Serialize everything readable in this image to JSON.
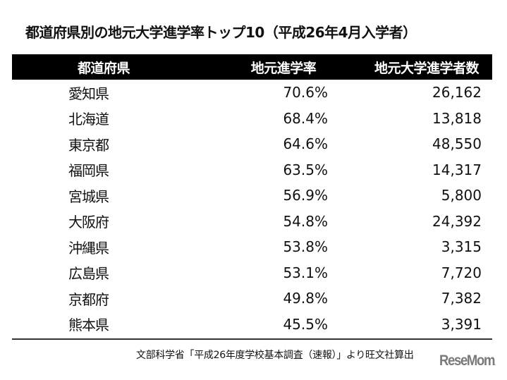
{
  "title": "都道府県別の地元大学進学率トップ10（平成26年4月入学者）",
  "table": {
    "headers": [
      "都道府県",
      "地元進学率",
      "地元大学進学者数"
    ],
    "rows": [
      {
        "prefecture": "愛知県",
        "rate": "70.6%",
        "count": "26,162"
      },
      {
        "prefecture": "北海道",
        "rate": "68.4%",
        "count": "13,818"
      },
      {
        "prefecture": "東京都",
        "rate": "64.6%",
        "count": "48,550"
      },
      {
        "prefecture": "福岡県",
        "rate": "63.5%",
        "count": "14,317"
      },
      {
        "prefecture": "宮城県",
        "rate": "56.9%",
        "count": "5,800"
      },
      {
        "prefecture": "大阪府",
        "rate": "54.8%",
        "count": "24,392"
      },
      {
        "prefecture": "沖縄県",
        "rate": "53.8%",
        "count": "3,315"
      },
      {
        "prefecture": "広島県",
        "rate": "53.1%",
        "count": "7,720"
      },
      {
        "prefecture": "京都府",
        "rate": "49.8%",
        "count": "7,382"
      },
      {
        "prefecture": "熊本県",
        "rate": "45.5%",
        "count": "3,391"
      }
    ]
  },
  "source": "文部科学省「平成26年度学校基本調査（速報）」より旺文社算出",
  "logo": {
    "text": "ReseMom",
    "suffix": "."
  },
  "colors": {
    "header_bg": "#000000",
    "header_text": "#ffffff",
    "logo": "#7a7a7a"
  }
}
